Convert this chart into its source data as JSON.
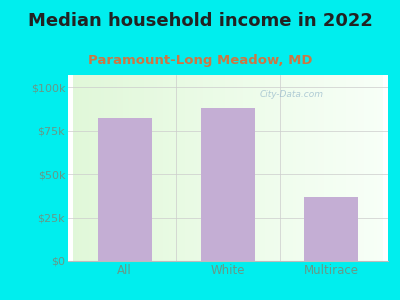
{
  "title": "Median household income in 2022",
  "subtitle": "Paramount-Long Meadow, MD",
  "categories": [
    "All",
    "White",
    "Multirace"
  ],
  "values": [
    82000,
    88000,
    37000
  ],
  "bar_color": "#c4aed4",
  "background_color": "#00EEEE",
  "title_color": "#222222",
  "subtitle_color": "#cc7744",
  "tick_color": "#669988",
  "yticks": [
    0,
    25000,
    50000,
    75000,
    100000
  ],
  "ytick_labels": [
    "$0",
    "$25k",
    "$50k",
    "$75k",
    "$100k"
  ],
  "ylim": [
    0,
    107000
  ],
  "watermark": "City-Data.com",
  "title_fontsize": 13,
  "subtitle_fontsize": 9.5,
  "tick_fontsize": 8
}
